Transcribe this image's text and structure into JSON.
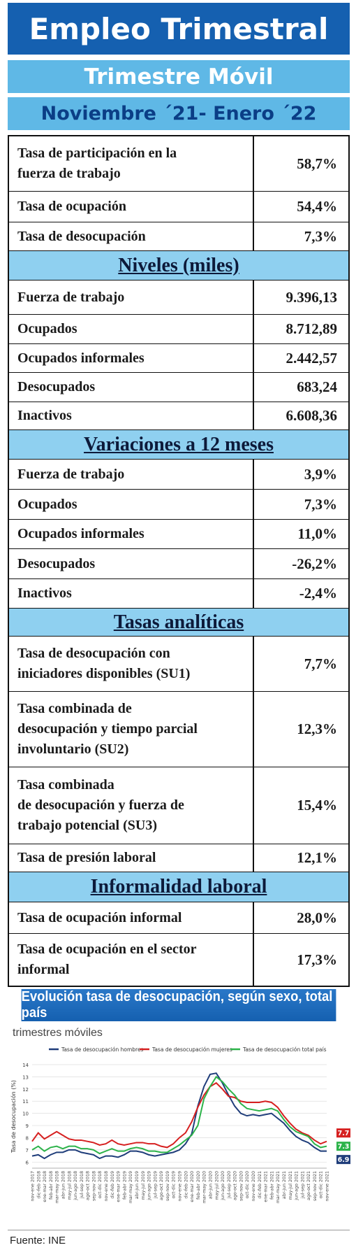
{
  "header": {
    "title": "Empleo Trimestral",
    "subtitle": "Trimestre Móvil",
    "period": "Noviembre ´21- Enero ´22"
  },
  "table": {
    "intro": [
      [
        "Tasa de participación en la\nfuerza de trabajo",
        "58,7%"
      ],
      [
        "Tasa de ocupación",
        "54,4%"
      ],
      [
        "Tasa de desocupación",
        "7,3%"
      ]
    ],
    "sections": [
      {
        "heading": "Niveles (miles)",
        "rows": [
          [
            "Fuerza de trabajo",
            "9.396,13"
          ],
          [
            "Ocupados",
            "8.712,89"
          ],
          [
            "Ocupados informales",
            "2.442,57"
          ],
          [
            "Desocupados",
            "683,24"
          ],
          [
            "Inactivos",
            "6.608,36"
          ]
        ]
      },
      {
        "heading": "Variaciones a 12 meses",
        "rows": [
          [
            "Fuerza de trabajo",
            "3,9%"
          ],
          [
            "Ocupados",
            "7,3%"
          ],
          [
            "Ocupados informales",
            "11,0%"
          ],
          [
            "Desocupados",
            "-26,2%"
          ],
          [
            "Inactivos",
            "-2,4%"
          ]
        ]
      },
      {
        "heading": "Tasas analíticas",
        "rows": [
          [
            "Tasa de desocupación con\niniciadores disponibles (SU1)",
            "7,7%"
          ],
          [
            "Tasa combinada de\ndesocupación y tiempo parcial\ninvoluntario (SU2)",
            "12,3%"
          ],
          [
            "Tasa combinada\nde desocupación y fuerza de\ntrabajo potencial (SU3)",
            "15,4%"
          ],
          [
            "Tasa de presión laboral",
            "12,1%"
          ]
        ]
      },
      {
        "heading": "Informalidad laboral",
        "rows": [
          [
            "Tasa de ocupación informal",
            "28,0%"
          ],
          [
            "Tasa de ocupación en el sector\ninformal",
            "17,3%"
          ]
        ]
      }
    ]
  },
  "chart_data": {
    "type": "line",
    "title": "Evolución tasa de desocupación, según sexo, total país",
    "subtitle": "trimestres móviles",
    "y_label": "Tasa de desocupación (%)",
    "source": "Fuente: INE",
    "categories": [
      "nov-ene 2017",
      "dic-feb 2018",
      "ene-mar 2018",
      "feb-abr 2018",
      "mar-may 2018",
      "abr-jun 2018",
      "may-jul 2018",
      "jun-ago 2018",
      "jul-sep 2018",
      "ago-oct 2018",
      "sep-nov 2018",
      "oct-dic 2018",
      "nov-ene 2018",
      "dic-feb 2019",
      "ene-mar 2019",
      "feb-abr 2019",
      "mar-may 2019",
      "abr-jun 2019",
      "may-jul 2019",
      "jun-ago 2019",
      "jul-sep 2019",
      "ago-oct 2019",
      "sep-nov 2019",
      "oct-dic 2019",
      "nov-ene 2019",
      "dic-feb 2020",
      "ene-mar 2020",
      "feb-abr 2020",
      "mar-may 2020",
      "abr-jun 2020",
      "may-jul 2020",
      "jun-ago 2020",
      "jul-sep 2020",
      "ago-oct 2020",
      "sep-nov 2020",
      "oct-dic 2020",
      "nov-ene 2020",
      "dic-feb 2021",
      "ene-mar 2021",
      "feb-abr 2021",
      "mar-may 2021",
      "abr-jun 2021",
      "may-jul 2021",
      "jun-ago 2021",
      "jul-sep 2021",
      "ago-oct 2021",
      "sep-nov 2021",
      "oct-dic 2021",
      "nov-ene 2021"
    ],
    "series": [
      {
        "name": "Tasa de desocupación hombres",
        "color": "#1f3d7a",
        "values": [
          6.5,
          6.6,
          6.3,
          6.6,
          6.8,
          6.8,
          7.0,
          7.0,
          6.8,
          6.7,
          6.6,
          6.3,
          6.5,
          6.5,
          6.4,
          6.6,
          6.9,
          6.9,
          6.8,
          6.6,
          6.5,
          6.6,
          6.7,
          6.8,
          7.0,
          7.5,
          8.3,
          10.6,
          12.2,
          13.2,
          13.3,
          12.5,
          11.5,
          10.6,
          10.0,
          9.8,
          9.9,
          9.8,
          9.9,
          10.0,
          9.6,
          9.2,
          8.6,
          8.1,
          7.8,
          7.6,
          7.2,
          6.9,
          6.9
        ]
      },
      {
        "name": "Tasa de desocupación mujeres",
        "color": "#d62020",
        "values": [
          7.7,
          8.4,
          7.9,
          8.2,
          8.5,
          8.2,
          7.9,
          7.8,
          7.8,
          7.7,
          7.6,
          7.4,
          7.5,
          7.8,
          7.5,
          7.4,
          7.5,
          7.6,
          7.6,
          7.5,
          7.5,
          7.3,
          7.2,
          7.5,
          8.0,
          8.4,
          9.3,
          10.5,
          11.5,
          12.2,
          12.5,
          12.0,
          11.4,
          11.3,
          11.0,
          10.9,
          10.9,
          10.9,
          11.0,
          10.9,
          10.5,
          9.8,
          9.2,
          8.7,
          8.4,
          8.2,
          7.8,
          7.5,
          7.7
        ]
      },
      {
        "name": "Tasa de desocupación total país",
        "color": "#2db34a",
        "values": [
          7.0,
          7.3,
          6.9,
          7.2,
          7.3,
          7.1,
          7.3,
          7.3,
          7.1,
          7.1,
          7.0,
          6.7,
          6.9,
          7.1,
          6.9,
          6.9,
          7.1,
          7.2,
          7.1,
          6.9,
          6.9,
          6.8,
          6.8,
          7.1,
          7.4,
          7.8,
          8.2,
          9.0,
          11.2,
          12.2,
          13.0,
          12.6,
          12.0,
          11.5,
          10.8,
          10.4,
          10.3,
          10.2,
          10.3,
          10.4,
          10.2,
          9.5,
          8.9,
          8.5,
          8.3,
          8.1,
          7.5,
          7.2,
          7.3
        ]
      }
    ],
    "ylim": [
      5.5,
      14
    ],
    "yticks": [
      6,
      7,
      8,
      9,
      10,
      11,
      12,
      13,
      14
    ],
    "grid": true,
    "legend": "top"
  }
}
